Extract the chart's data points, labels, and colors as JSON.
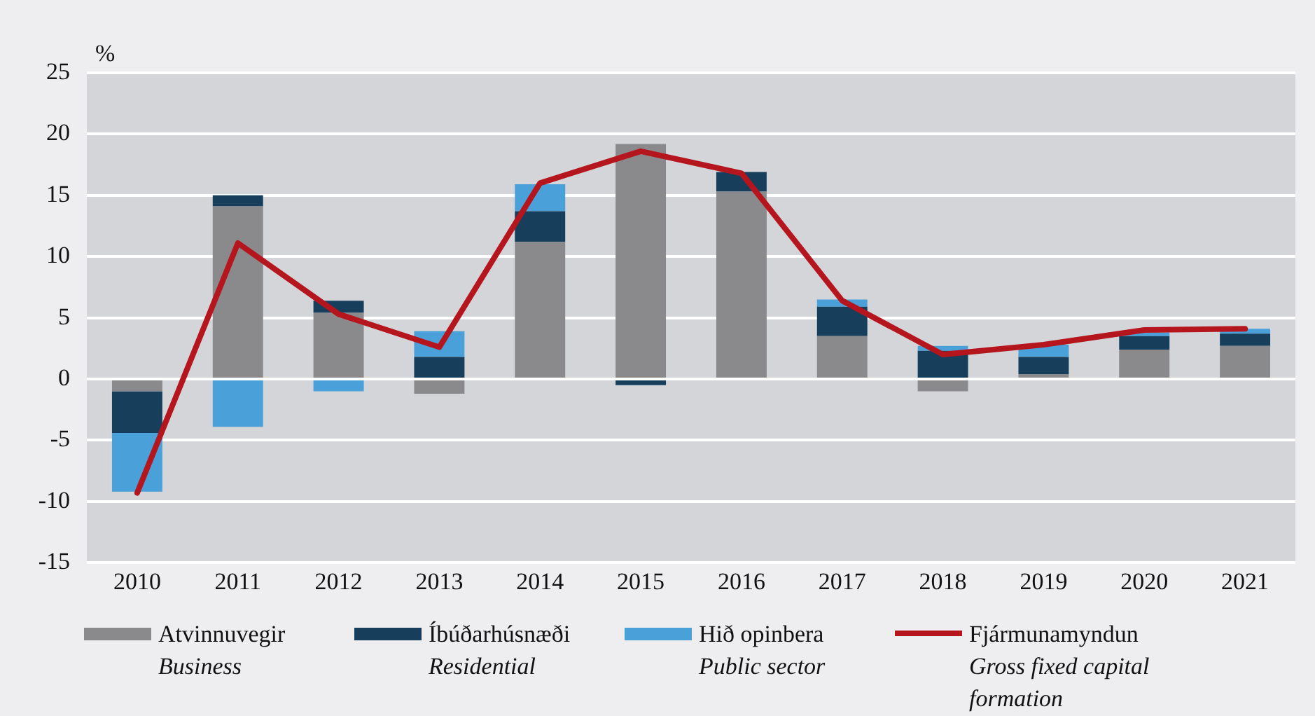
{
  "chart_data": {
    "type": "bar",
    "ylabel": "%",
    "categories": [
      "2010",
      "2011",
      "2012",
      "2013",
      "2014",
      "2015",
      "2016",
      "2017",
      "2018",
      "2019",
      "2020",
      "2021"
    ],
    "series": [
      {
        "name": "Atvinnuvegir\nBusiness",
        "color": "#8a8a8c",
        "values": [
          -1.0,
          14.1,
          5.4,
          -1.2,
          11.2,
          19.2,
          15.3,
          3.5,
          -1.0,
          0.4,
          2.4,
          2.7
        ]
      },
      {
        "name": "Íbúðarhúsnæði\nResidential",
        "color": "#173f5c",
        "values": [
          -3.4,
          0.9,
          1.0,
          1.8,
          2.5,
          -0.5,
          1.6,
          2.4,
          2.3,
          1.4,
          1.1,
          1.0
        ]
      },
      {
        "name": "Hið opinbera\nPublic sector",
        "color": "#4aa0d8",
        "values": [
          -4.8,
          -3.9,
          -1.0,
          2.1,
          2.2,
          null,
          null,
          0.6,
          0.4,
          1.0,
          0.3,
          0.4
        ]
      },
      {
        "name": "Fjármunamyndun\nGross fixed capital formation",
        "type": "line",
        "color": "#b5161e",
        "values": [
          -9.3,
          11.1,
          5.3,
          2.6,
          16.0,
          18.6,
          16.8,
          6.4,
          2.0,
          2.8,
          4.0,
          4.1
        ]
      }
    ],
    "stacked": true,
    "ylim": [
      -15,
      25
    ],
    "yticks": [
      -15,
      -10,
      -5,
      0,
      5,
      10,
      15,
      20,
      25
    ],
    "grid": "y",
    "legend": "bottom"
  }
}
